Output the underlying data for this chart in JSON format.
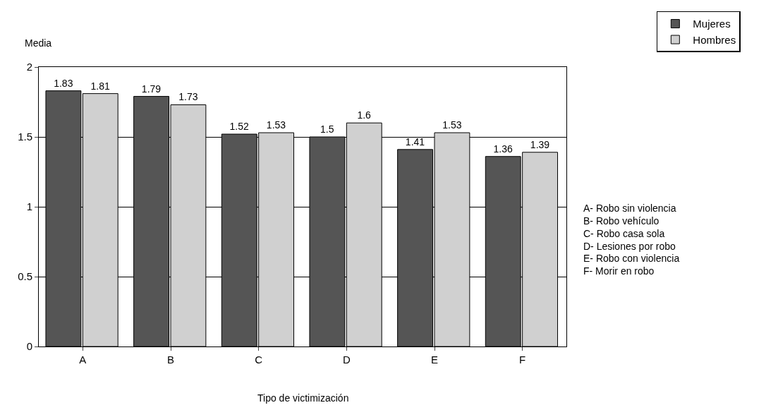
{
  "chart_data": {
    "type": "bar",
    "xlabel": "Tipo de victimización",
    "ylabel": "Media",
    "categories": [
      "A",
      "B",
      "C",
      "D",
      "E",
      "F"
    ],
    "series": [
      {
        "name": "Mujeres",
        "color": "#555555",
        "values": [
          1.83,
          1.79,
          1.52,
          1.5,
          1.41,
          1.36
        ]
      },
      {
        "name": "Hombres",
        "color": "#d0d0d0",
        "values": [
          1.81,
          1.73,
          1.53,
          1.6,
          1.53,
          1.39
        ]
      }
    ],
    "ylim": [
      0,
      2
    ],
    "yticks": [
      0,
      0.5,
      1,
      1.5,
      2
    ],
    "grid": "y",
    "legend": "top right",
    "data_labels": true,
    "annotations": [
      "A- Robo sin violencia",
      "B- Robo vehículo",
      "C- Robo casa sola",
      "D- Lesiones por robo",
      "E- Robo con violencia",
      "F- Morir en robo"
    ]
  }
}
